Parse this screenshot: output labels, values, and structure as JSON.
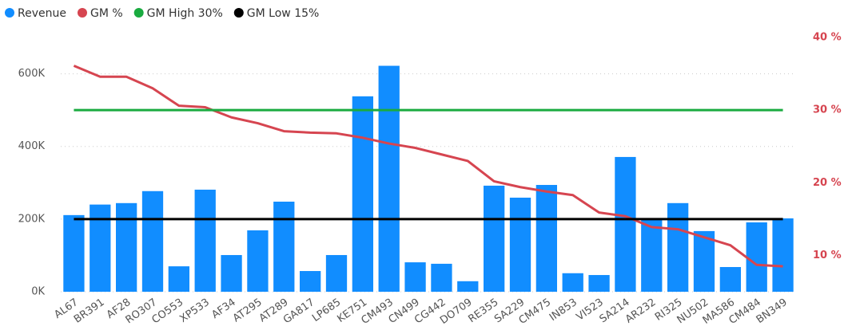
{
  "chart_data": {
    "type": "bar",
    "categories": [
      "AL67",
      "BR391",
      "AF28",
      "RO307",
      "CO553",
      "XP533",
      "AF34",
      "AT295",
      "AT289",
      "GA817",
      "LP685",
      "KE751",
      "CM493",
      "CN499",
      "CG442",
      "DO709",
      "RE355",
      "SA229",
      "CM475",
      "IN853",
      "VI523",
      "SA214",
      "AR232",
      "RI325",
      "NU502",
      "MA586",
      "CM484",
      "BN349"
    ],
    "series": [
      {
        "name": "Revenue",
        "type": "bar",
        "color": "#118DFF",
        "values": [
          211000,
          240000,
          244000,
          277000,
          70000,
          281000,
          101000,
          169000,
          248000,
          57000,
          101000,
          538000,
          622000,
          81000,
          77000,
          29000,
          292000,
          259000,
          294000,
          51000,
          46000,
          371000,
          200000,
          244000,
          167000,
          68000,
          191000,
          202000
        ]
      },
      {
        "name": "GM %",
        "type": "line",
        "axis": "y2",
        "color": "#D64550",
        "values": [
          36.1,
          34.6,
          34.6,
          33.0,
          30.6,
          30.4,
          29.0,
          28.2,
          27.1,
          26.9,
          26.8,
          26.2,
          25.4,
          24.8,
          23.9,
          23.0,
          20.2,
          19.4,
          18.8,
          18.3,
          15.9,
          15.4,
          13.9,
          13.6,
          12.5,
          11.4,
          8.7,
          8.5
        ]
      },
      {
        "name": "GM High 30%",
        "type": "line",
        "axis": "y2",
        "color": "#1AAB40",
        "values": [
          30,
          30,
          30,
          30,
          30,
          30,
          30,
          30,
          30,
          30,
          30,
          30,
          30,
          30,
          30,
          30,
          30,
          30,
          30,
          30,
          30,
          30,
          30,
          30,
          30,
          30,
          30,
          30
        ]
      },
      {
        "name": "GM Low 15%",
        "type": "line",
        "axis": "y2",
        "color": "#000000",
        "values": [
          15,
          15,
          15,
          15,
          15,
          15,
          15,
          15,
          15,
          15,
          15,
          15,
          15,
          15,
          15,
          15,
          15,
          15,
          15,
          15,
          15,
          15,
          15,
          15,
          15,
          15,
          15,
          15
        ]
      }
    ],
    "ylim": [
      0,
      700000
    ],
    "yticks": [
      {
        "value": 0,
        "label": "0K"
      },
      {
        "value": 200000,
        "label": "200K"
      },
      {
        "value": 400000,
        "label": "400K"
      },
      {
        "value": 600000,
        "label": "600K"
      }
    ],
    "y2lim": [
      5,
      40
    ],
    "y2ticks": [
      {
        "value": 10,
        "label": "10 %"
      },
      {
        "value": 20,
        "label": "20 %"
      },
      {
        "value": 30,
        "label": "30 %"
      },
      {
        "value": 40,
        "label": "40 %"
      }
    ],
    "y2color": "#D64550",
    "grid": true,
    "legend": "top-left"
  }
}
